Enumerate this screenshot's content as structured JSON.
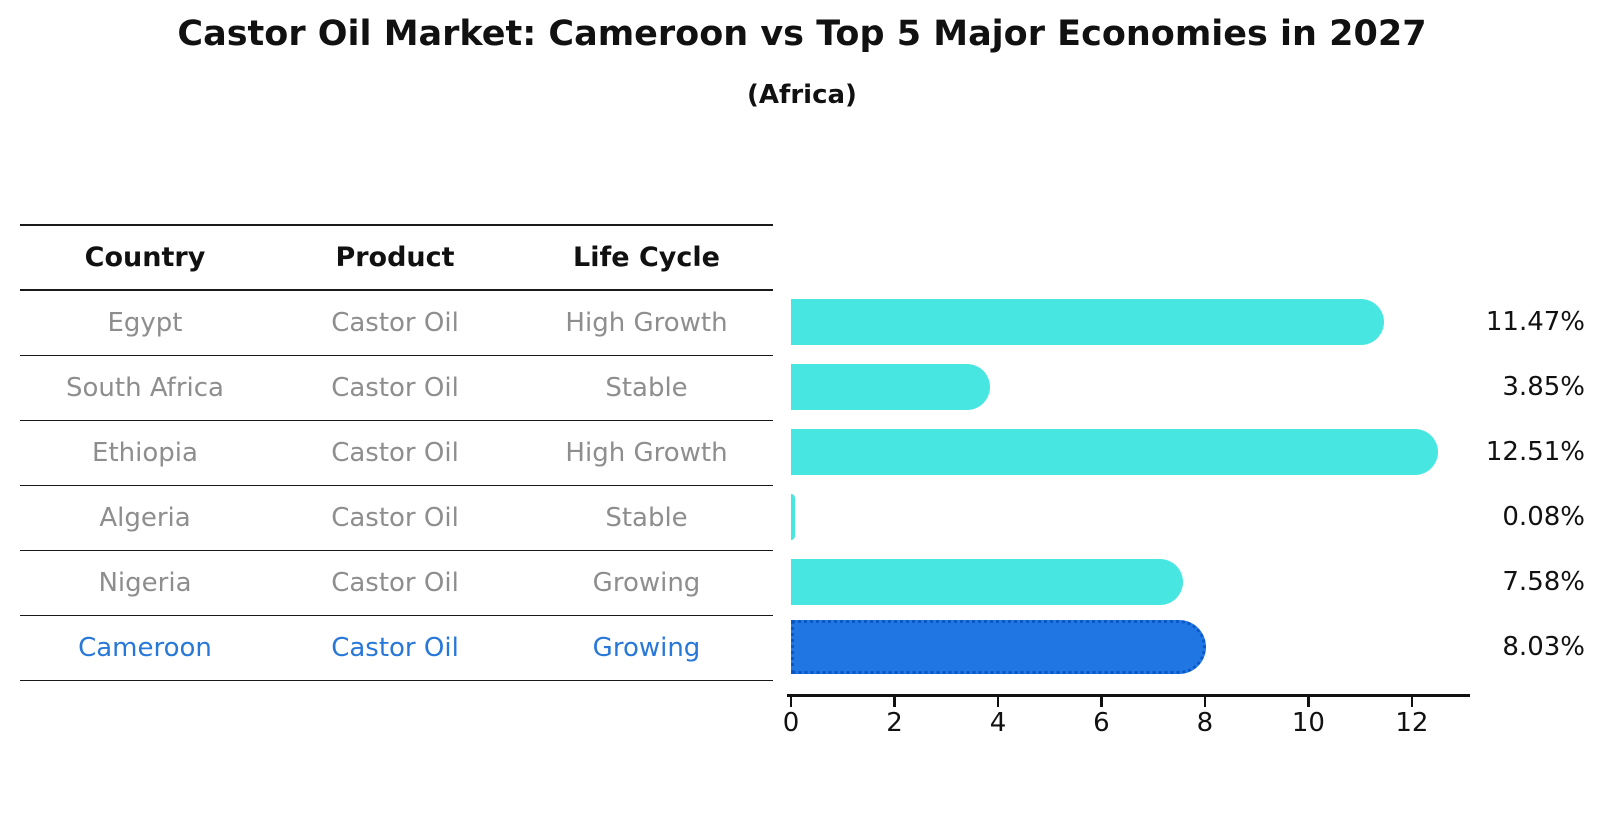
{
  "header": {
    "title": "Castor Oil Market: Cameroon vs Top 5 Major Economies in 2027",
    "subtitle": "(Africa)"
  },
  "table": {
    "columns": [
      "Country",
      "Product",
      "Life Cycle"
    ],
    "rows": [
      {
        "country": "Egypt",
        "product": "Castor Oil",
        "life_cycle": "High Growth",
        "highlight": false
      },
      {
        "country": "South Africa",
        "product": "Castor Oil",
        "life_cycle": "Stable",
        "highlight": false
      },
      {
        "country": "Ethiopia",
        "product": "Castor Oil",
        "life_cycle": "High Growth",
        "highlight": false
      },
      {
        "country": "Algeria",
        "product": "Castor Oil",
        "life_cycle": "Stable",
        "highlight": false
      },
      {
        "country": "Nigeria",
        "product": "Castor Oil",
        "life_cycle": "Growing",
        "highlight": false
      },
      {
        "country": "Cameroon",
        "product": "Castor Oil",
        "life_cycle": "Growing",
        "highlight": true
      }
    ]
  },
  "chart_data": {
    "type": "bar",
    "orientation": "horizontal",
    "title": "Castor Oil Market: Cameroon vs Top 5 Major Economies in 2027",
    "subtitle": "(Africa)",
    "categories": [
      "Egypt",
      "South Africa",
      "Ethiopia",
      "Algeria",
      "Nigeria",
      "Cameroon"
    ],
    "values": [
      11.47,
      3.85,
      12.51,
      0.08,
      7.58,
      8.03
    ],
    "value_labels": [
      "11.47%",
      "3.85%",
      "12.51%",
      "0.08%",
      "7.58%",
      "8.03%"
    ],
    "xlabel": "",
    "ylabel": "",
    "xlim": [
      0,
      13.2
    ],
    "x_ticks": [
      0,
      2,
      4,
      6,
      8,
      10,
      12
    ],
    "grid": false,
    "legend": false,
    "bar_color": "#47e6e0",
    "highlight_color": "#2077e4",
    "highlight_border_color": "#0a58c8",
    "highlight_index": 5,
    "highlight_text_color": "#2878d8",
    "text_gray": "#8e8e8e"
  }
}
